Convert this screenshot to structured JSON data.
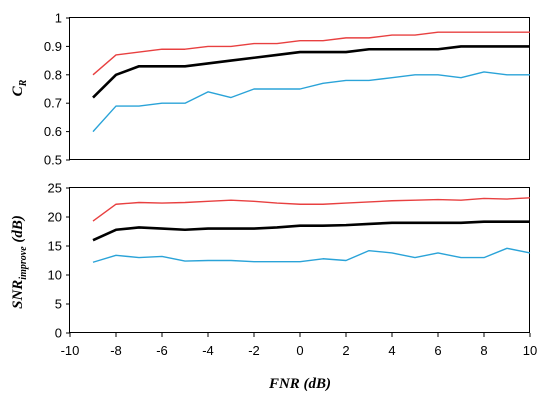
{
  "chart_data": [
    {
      "type": "line",
      "ylabel_main": "C",
      "ylabel_sub": "R",
      "xlabel": "",
      "xlim": [
        -10,
        10
      ],
      "ylim": [
        0.5,
        1
      ],
      "yticks": [
        0.5,
        0.6,
        0.7,
        0.8,
        0.9,
        1
      ],
      "ytick_labels": [
        "0.5",
        "0.6",
        "0.7",
        "0.8",
        "0.9",
        "1"
      ],
      "grid": false,
      "x": [
        -9,
        -8,
        -7,
        -6,
        -5,
        -4,
        -3,
        -2,
        -1,
        0,
        1,
        2,
        3,
        4,
        5,
        6,
        7,
        8,
        9,
        10
      ],
      "series": [
        {
          "color": "#e84040",
          "width": 1.4,
          "values": [
            0.8,
            0.87,
            0.88,
            0.89,
            0.89,
            0.9,
            0.9,
            0.91,
            0.91,
            0.92,
            0.92,
            0.93,
            0.93,
            0.94,
            0.94,
            0.95,
            0.95,
            0.95,
            0.95,
            0.95
          ]
        },
        {
          "color": "#000000",
          "width": 2.6,
          "values": [
            0.72,
            0.8,
            0.83,
            0.83,
            0.83,
            0.84,
            0.85,
            0.86,
            0.87,
            0.88,
            0.88,
            0.88,
            0.89,
            0.89,
            0.89,
            0.89,
            0.9,
            0.9,
            0.9,
            0.9
          ]
        },
        {
          "color": "#2aa3d8",
          "width": 1.4,
          "values": [
            0.6,
            0.69,
            0.69,
            0.7,
            0.7,
            0.74,
            0.72,
            0.75,
            0.75,
            0.75,
            0.77,
            0.78,
            0.78,
            0.79,
            0.8,
            0.8,
            0.79,
            0.81,
            0.8,
            0.8
          ]
        }
      ]
    },
    {
      "type": "line",
      "ylabel_main": "SNR",
      "ylabel_sub": "improve",
      "ylabel_suffix": " (dB)",
      "xlabel": "FNR  (dB)",
      "xlim": [
        -10,
        10
      ],
      "ylim": [
        0,
        25
      ],
      "yticks": [
        0,
        5,
        10,
        15,
        20,
        25
      ],
      "ytick_labels": [
        "0",
        "5",
        "10",
        "15",
        "20",
        "25"
      ],
      "xticks": [
        -10,
        -8,
        -6,
        -4,
        -2,
        0,
        2,
        4,
        6,
        8,
        10
      ],
      "xtick_labels": [
        "-10",
        "-8",
        "-6",
        "-4",
        "-2",
        "0",
        "2",
        "4",
        "6",
        "8",
        "10"
      ],
      "grid": false,
      "x": [
        -9,
        -8,
        -7,
        -6,
        -5,
        -4,
        -3,
        -2,
        -1,
        0,
        1,
        2,
        3,
        4,
        5,
        6,
        7,
        8,
        9,
        10
      ],
      "series": [
        {
          "color": "#e84040",
          "width": 1.4,
          "values": [
            19.3,
            22.2,
            22.5,
            22.4,
            22.5,
            22.7,
            22.9,
            22.7,
            22.4,
            22.2,
            22.2,
            22.4,
            22.6,
            22.8,
            22.9,
            23.0,
            22.9,
            23.2,
            23.1,
            23.3
          ]
        },
        {
          "color": "#000000",
          "width": 2.6,
          "values": [
            16.0,
            17.8,
            18.2,
            18.0,
            17.8,
            18.0,
            18.0,
            18.0,
            18.2,
            18.5,
            18.5,
            18.6,
            18.8,
            19.0,
            19.0,
            19.0,
            19.0,
            19.2,
            19.2,
            19.2
          ]
        },
        {
          "color": "#2aa3d8",
          "width": 1.4,
          "values": [
            12.2,
            13.4,
            13.0,
            13.2,
            12.4,
            12.5,
            12.5,
            12.3,
            12.3,
            12.3,
            12.8,
            12.5,
            14.2,
            13.8,
            13.0,
            13.8,
            13.0,
            13.0,
            14.6,
            13.8
          ]
        }
      ]
    }
  ]
}
